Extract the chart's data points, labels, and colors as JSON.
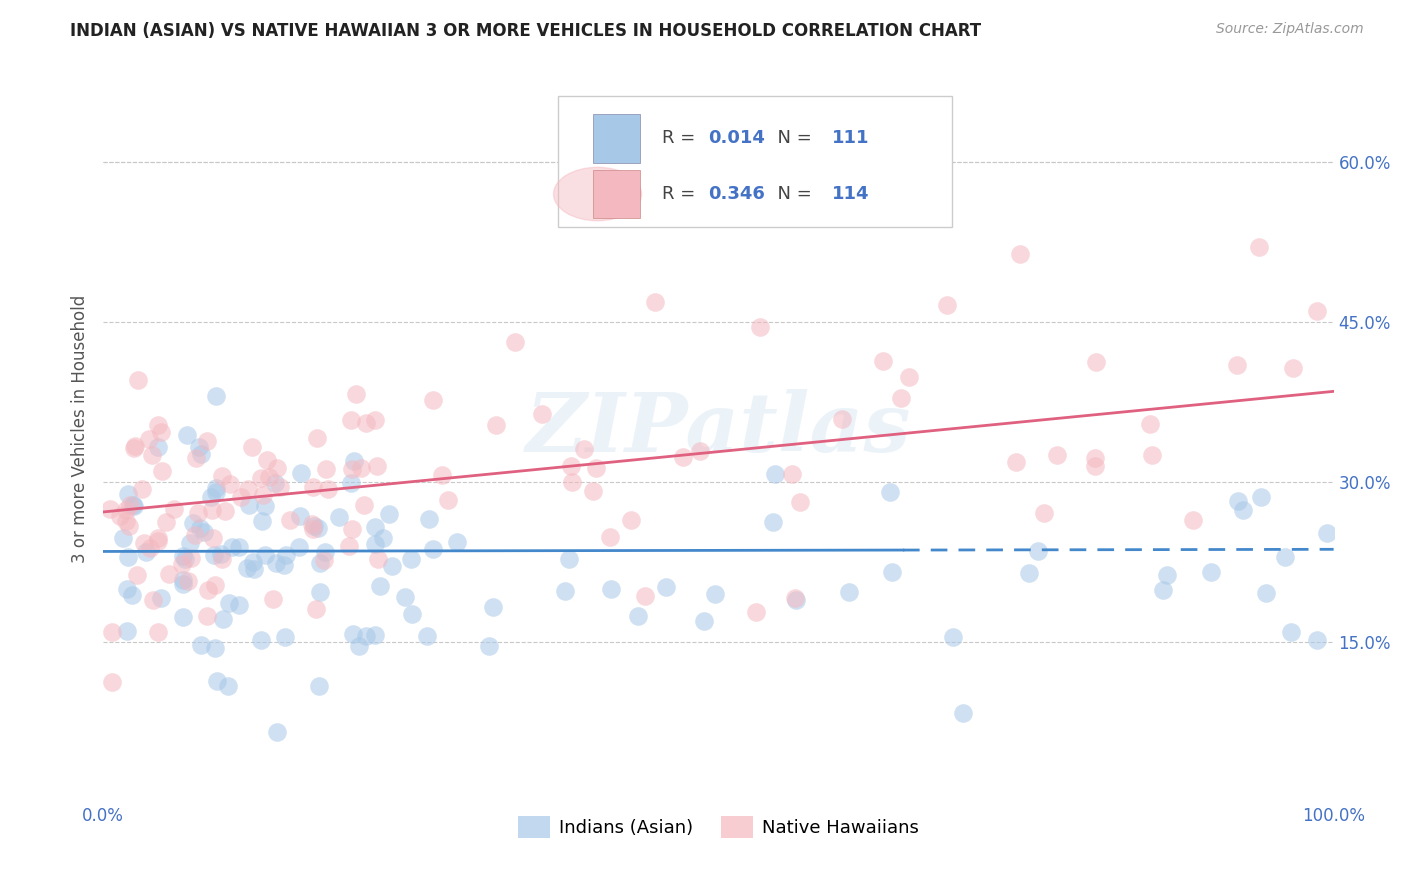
{
  "title": "INDIAN (ASIAN) VS NATIVE HAWAIIAN 3 OR MORE VEHICLES IN HOUSEHOLD CORRELATION CHART",
  "source_text": "Source: ZipAtlas.com",
  "ylabel": "3 or more Vehicles in Household",
  "xlim": [
    0,
    1.0
  ],
  "ylim": [
    0.0,
    0.7
  ],
  "xtick_positions": [
    0.0,
    1.0
  ],
  "xtick_labels": [
    "0.0%",
    "100.0%"
  ],
  "ytick_vals": [
    0.15,
    0.3,
    0.45,
    0.6
  ],
  "ytick_labels": [
    "15.0%",
    "30.0%",
    "45.0%",
    "60.0%"
  ],
  "grid_color": "#c8c8c8",
  "background_color": "#ffffff",
  "blue_color": "#a8c8e8",
  "pink_color": "#f4b8c0",
  "blue_line_color": "#4488cc",
  "pink_line_color": "#e06080",
  "blue_line_solid_end": 0.65,
  "blue_line_start_y": 0.235,
  "blue_line_end_y": 0.237,
  "pink_line_start_y": 0.272,
  "pink_line_end_y": 0.385,
  "R_blue": 0.014,
  "N_blue": 111,
  "R_pink": 0.346,
  "N_pink": 114,
  "legend_label_blue": "Indians (Asian)",
  "legend_label_pink": "Native Hawaiians",
  "watermark": "ZIPatlas",
  "tick_color": "#4472c4",
  "title_fontsize": 12,
  "axis_fontsize": 12,
  "legend_fontsize": 13
}
